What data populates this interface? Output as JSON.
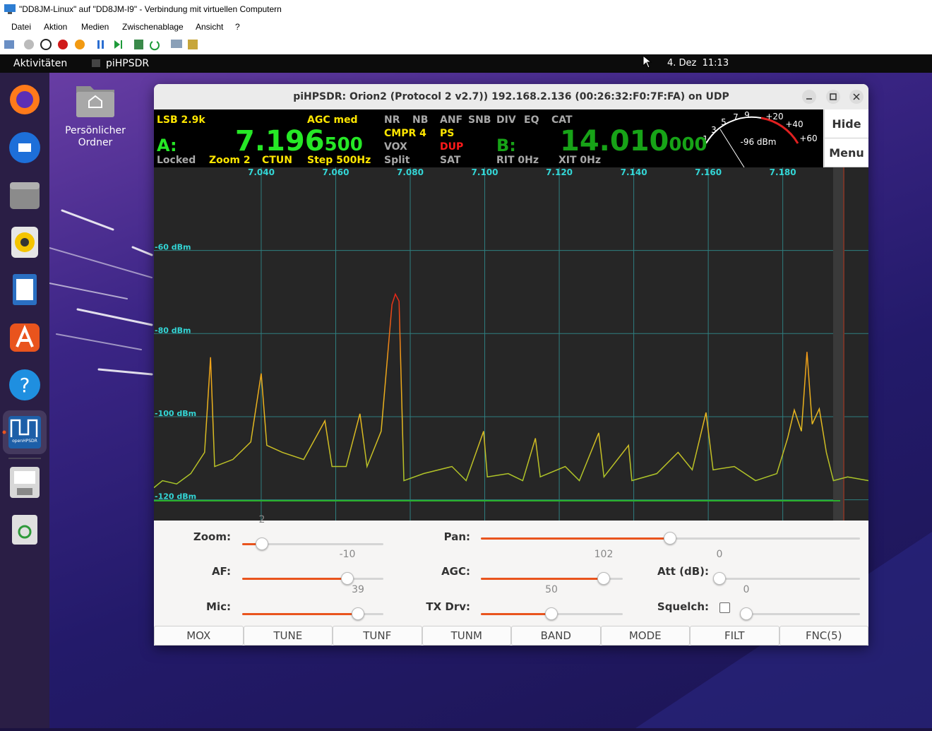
{
  "window": {
    "title": "\"DD8JM-Linux\" auf \"DD8JM-I9\" - Verbindung mit virtuellen Computern",
    "menu": [
      "Datei",
      "Aktion",
      "Medien",
      "Zwischenablage",
      "Ansicht",
      "?"
    ]
  },
  "topbar": {
    "activities": "Aktivitäten",
    "app": "piHPSDR",
    "clock": "4. Dez  11:13"
  },
  "desktop": {
    "home_folder": "Persönlicher Ordner",
    "dock_app_label": "openHPSDR"
  },
  "app": {
    "title": "piHPSDR: Orion2 (Protocol 2 v2.7)) 192.168.2.136 (00:26:32:F0:7F:FA) on UDP",
    "status": {
      "mode": "LSB 2.9k",
      "agc": "AGC med",
      "flags_row1": [
        "NR",
        "NB",
        "ANF",
        "SNB",
        "DIV",
        "EQ",
        "CAT"
      ],
      "cmpr": "CMPR 4",
      "ps": "PS",
      "vox": "VOX",
      "dup": "DUP",
      "split": "Split",
      "sat": "SAT",
      "vfo_a_label": "A:",
      "vfo_a_main": "7.196",
      "vfo_a_sub": "500",
      "vfo_b_label": "B:",
      "vfo_b_main": "14.010",
      "vfo_b_sub": "000",
      "locked": "Locked",
      "zoom": "Zoom 2",
      "ctun": "CTUN",
      "step": "Step 500Hz",
      "rit": "RIT 0Hz",
      "xit": "XIT 0Hz"
    },
    "meter": {
      "scale": [
        "1",
        "3",
        "5",
        "7",
        "9",
        "+20",
        "+40",
        "+60"
      ],
      "reading": "-96 dBm"
    },
    "side_buttons": [
      "Hide",
      "Menu"
    ],
    "spectrum": {
      "type": "line",
      "xlim": [
        7.0112,
        7.203
      ],
      "ylim": [
        -125,
        -40
      ],
      "xticks": [
        {
          "value": 7.04,
          "label": "7.040"
        },
        {
          "value": 7.06,
          "label": "7.060"
        },
        {
          "value": 7.08,
          "label": "7.080"
        },
        {
          "value": 7.1,
          "label": "7.100"
        },
        {
          "value": 7.12,
          "label": "7.120"
        },
        {
          "value": 7.14,
          "label": "7.140"
        },
        {
          "value": 7.16,
          "label": "7.160"
        },
        {
          "value": 7.18,
          "label": "7.180"
        }
      ],
      "yticks": [
        {
          "value": -60,
          "label": "-60 dBm"
        },
        {
          "value": -80,
          "label": "-80 dBm"
        },
        {
          "value": -100,
          "label": "-100 dBm"
        },
        {
          "value": -120,
          "label": "-120 dBm"
        }
      ],
      "x": [
        7.0112,
        7.0135,
        7.0173,
        7.0211,
        7.0248,
        7.0264,
        7.0275,
        7.0324,
        7.0372,
        7.04,
        7.0415,
        7.0457,
        7.0514,
        7.0571,
        7.059,
        7.0628,
        7.0665,
        7.0684,
        7.0722,
        7.0751,
        7.076,
        7.077,
        7.0783,
        7.0836,
        7.0912,
        7.095,
        7.0997,
        7.1007,
        7.1063,
        7.1102,
        7.1136,
        7.1149,
        7.1216,
        7.1254,
        7.1306,
        7.132,
        7.1386,
        7.1395,
        7.1462,
        7.1519,
        7.1557,
        7.1594,
        7.1613,
        7.167,
        7.1727,
        7.1784,
        7.1813,
        7.1831,
        7.185,
        7.1865,
        7.1879,
        7.1898,
        7.1917,
        7.1936,
        7.1974,
        7.203
      ],
      "values": [
        -117.1,
        -115.4,
        -116.2,
        -113.7,
        -108.6,
        -85.7,
        -112.0,
        -110.3,
        -106.1,
        -89.6,
        -106.9,
        -108.6,
        -110.3,
        -101.0,
        -112.0,
        -112.0,
        -99.3,
        -112.0,
        -103.5,
        -73.0,
        -70.5,
        -72.2,
        -115.4,
        -113.7,
        -112.0,
        -115.4,
        -103.5,
        -114.5,
        -113.7,
        -115.4,
        -105.2,
        -114.5,
        -112.0,
        -115.4,
        -103.9,
        -114.5,
        -106.9,
        -115.4,
        -113.7,
        -108.6,
        -112.8,
        -99.0,
        -112.8,
        -112.0,
        -115.4,
        -113.7,
        -105.2,
        -98.4,
        -103.5,
        -84.4,
        -101.8,
        -98.1,
        -108.6,
        -115.4,
        -114.5,
        -115.4
      ]
    },
    "controls": [
      {
        "label": "Zoom:",
        "value": 2
      },
      {
        "label": "Pan:"
      },
      {
        "label": "AF:",
        "value": -10
      },
      {
        "label": "AGC:",
        "value": 102
      },
      {
        "label": "Att (dB):",
        "value": 0
      },
      {
        "label": "Mic:",
        "value": 39
      },
      {
        "label": "TX Drv:",
        "value": 50
      },
      {
        "label": "Squelch:",
        "value": 0
      }
    ],
    "buttons": [
      "MOX",
      "TUNE",
      "TUNF",
      "TUNM",
      "BAND",
      "MODE",
      "FILT",
      "FNC(5)"
    ]
  }
}
